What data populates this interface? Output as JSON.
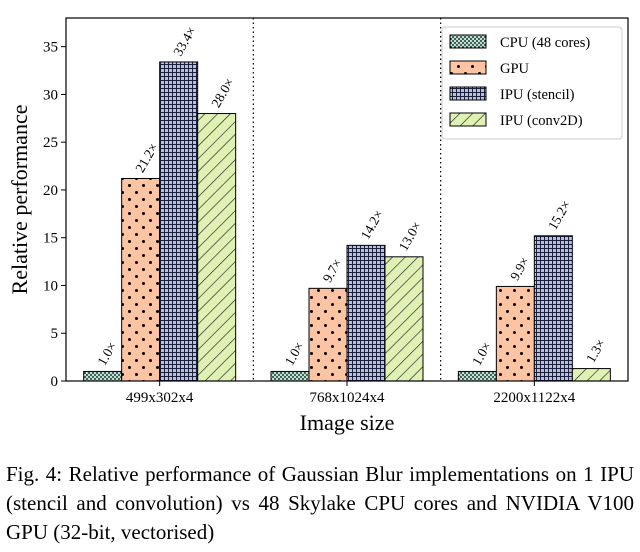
{
  "chart_data": {
    "type": "bar",
    "categories": [
      "499x302x4",
      "768x1024x4",
      "2200x1122x4"
    ],
    "series": [
      {
        "name": "CPU (48 cores)",
        "values": [
          1.0,
          1.0,
          1.0
        ],
        "labels": [
          "1.0×",
          "1.0×",
          "1.0×"
        ],
        "color": "#b9e2d3",
        "pattern": "dense-dots"
      },
      {
        "name": "GPU",
        "values": [
          21.2,
          9.7,
          9.9
        ],
        "labels": [
          "21.2×",
          "9.7×",
          "9.9×"
        ],
        "color": "#fdc4a4",
        "pattern": "dots"
      },
      {
        "name": "IPU (stencil)",
        "values": [
          33.4,
          14.2,
          15.2
        ],
        "labels": [
          "33.4×",
          "14.2×",
          "15.2×"
        ],
        "color": "#b9bfde",
        "pattern": "grid"
      },
      {
        "name": "IPU (conv2D)",
        "values": [
          28.0,
          13.0,
          1.3
        ],
        "labels": [
          "28.0×",
          "13.0×",
          "1.3×"
        ],
        "color": "#dff2b4",
        "pattern": "diagonal"
      }
    ],
    "xlabel": "Image size",
    "ylabel": "Relative performance",
    "ylim": [
      0,
      38
    ],
    "yticks": [
      0,
      5,
      10,
      15,
      20,
      25,
      30,
      35
    ],
    "legend_position": "top-right",
    "group_separators": "dotted",
    "grid": false
  },
  "caption": "Fig. 4: Relative performance of Gaussian Blur implementations on 1 IPU (stencil and convolution) vs 48 Skylake CPU cores and NVIDIA V100 GPU (32-bit, vectorised)"
}
